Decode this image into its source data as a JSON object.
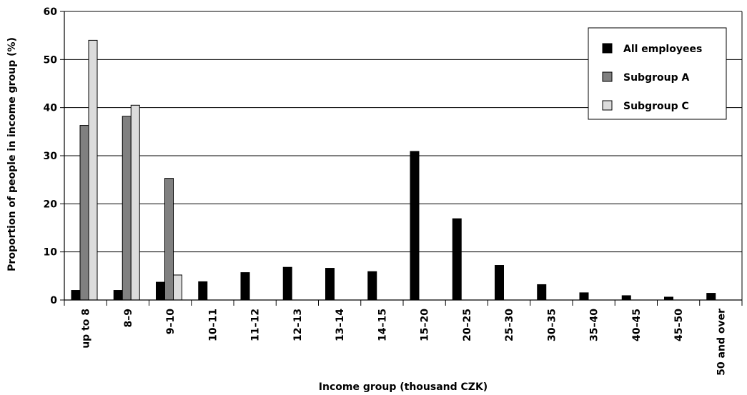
{
  "chart_data": {
    "type": "bar",
    "title": "",
    "xlabel": "Income group (thousand CZK)",
    "ylabel": "Proportion of people in income group (%)",
    "ylim": [
      0,
      60
    ],
    "yticks": [
      0,
      10,
      20,
      30,
      40,
      50,
      60
    ],
    "grid": true,
    "legend_position": "top-right",
    "categories": [
      "up to 8",
      "8–9",
      "9–10",
      "10–11",
      "11–12",
      "12–13",
      "13–14",
      "14–15",
      "15–20",
      "20–25",
      "25–30",
      "30–35",
      "35–40",
      "40–45",
      "45–50",
      "50 and over"
    ],
    "series": [
      {
        "name": "All employees",
        "color": "#000000",
        "values": [
          2.0,
          2.0,
          3.7,
          3.8,
          5.7,
          6.8,
          6.6,
          5.9,
          30.9,
          16.9,
          7.2,
          3.2,
          1.5,
          0.9,
          0.6,
          1.4
        ]
      },
      {
        "name": "Subgroup A",
        "color": "#808080",
        "values": [
          36.3,
          38.2,
          25.3,
          null,
          null,
          null,
          null,
          null,
          null,
          null,
          null,
          null,
          null,
          null,
          null,
          null
        ]
      },
      {
        "name": "Subgroup C",
        "color": "#dcdcdc",
        "values": [
          54.0,
          40.5,
          5.2,
          null,
          null,
          null,
          null,
          null,
          null,
          null,
          null,
          null,
          null,
          null,
          null,
          null
        ]
      }
    ]
  }
}
